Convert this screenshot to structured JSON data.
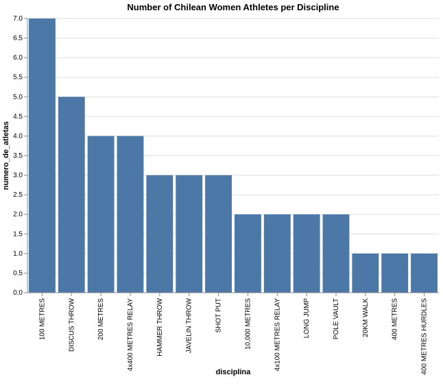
{
  "chart_data": {
    "type": "bar",
    "title": "Number of Chilean Women Athletes per Discipline",
    "xlabel": "disciplina",
    "ylabel": "numero_de_atletas",
    "categories": [
      "100 METRES",
      "DISCUS THROW",
      "200 METRES",
      "4x400 METRES RELAY",
      "HAMMER THROW",
      "JAVELIN THROW",
      "SHOT PUT",
      "10,000 METRES",
      "4x100 METRES RELAY",
      "LONG JUMP",
      "POLE VAULT",
      "20KM WALK",
      "400 METRES",
      "400 METRES HURDLES"
    ],
    "values": [
      7,
      5,
      4,
      4,
      3,
      3,
      3,
      2,
      2,
      2,
      2,
      1,
      1,
      1
    ],
    "ylim": [
      0,
      7
    ],
    "yticks": [
      "0.0",
      "0.5",
      "1.0",
      "1.5",
      "2.0",
      "2.5",
      "3.0",
      "3.5",
      "4.0",
      "4.5",
      "5.0",
      "5.5",
      "6.0",
      "6.5",
      "7.0"
    ],
    "grid": true,
    "bar_color": "#4c78a8"
  }
}
